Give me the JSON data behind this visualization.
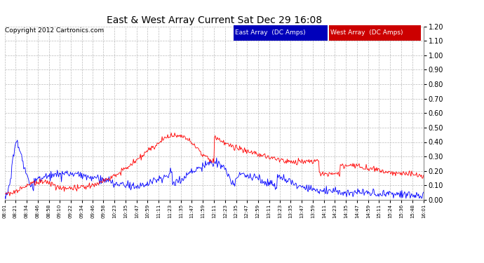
{
  "title": "East & West Array Current Sat Dec 29 16:08",
  "copyright": "Copyright 2012 Cartronics.com",
  "east_label": "East Array  (DC Amps)",
  "west_label": "West Array  (DC Amps)",
  "east_color": "#0000FF",
  "west_color": "#FF0000",
  "east_bg": "#0000BB",
  "west_bg": "#CC0000",
  "ylim": [
    0.0,
    1.2
  ],
  "yticks": [
    0.0,
    0.1,
    0.2,
    0.3,
    0.4,
    0.5,
    0.6,
    0.7,
    0.8,
    0.9,
    1.0,
    1.1,
    1.2
  ],
  "background_color": "#FFFFFF",
  "plot_bg": "#FFFFFF",
  "grid_color": "#BBBBBB",
  "x_labels": [
    "08:01",
    "08:21",
    "08:34",
    "08:46",
    "08:58",
    "09:10",
    "09:22",
    "09:34",
    "09:46",
    "09:58",
    "10:23",
    "10:35",
    "10:47",
    "10:59",
    "11:11",
    "11:23",
    "11:35",
    "11:47",
    "11:59",
    "12:11",
    "12:23",
    "12:35",
    "12:47",
    "12:59",
    "13:11",
    "13:23",
    "13:35",
    "13:47",
    "13:59",
    "14:11",
    "14:23",
    "14:35",
    "14:47",
    "14:59",
    "15:11",
    "15:24",
    "15:36",
    "15:48",
    "16:01"
  ]
}
